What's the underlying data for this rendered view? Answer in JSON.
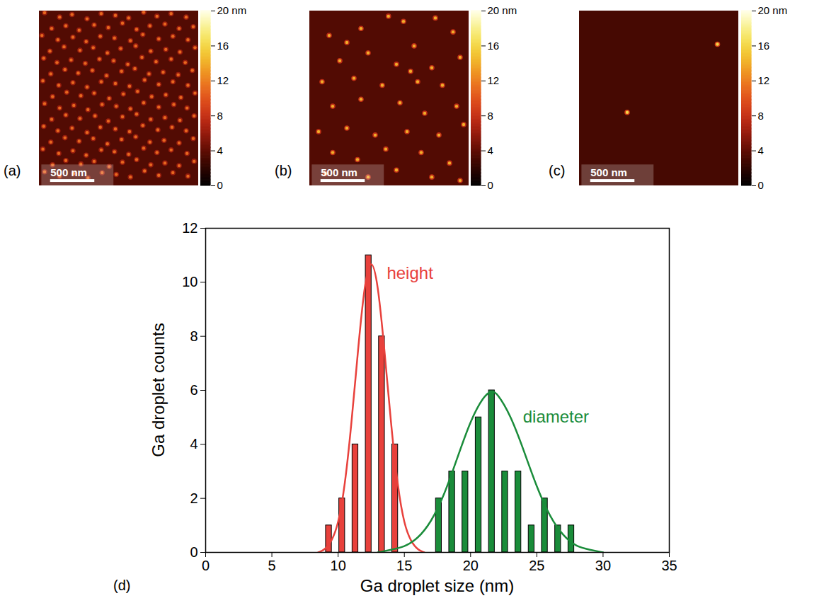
{
  "chart_data": [
    {
      "type": "image",
      "label": "(a)",
      "xlim": [
        0,
        1800
      ],
      "ylim": [
        0,
        2000
      ],
      "tick_labels": false,
      "background_height": 3.5,
      "droplet_height": 11,
      "scale_bar": {
        "length": 500,
        "label": "500 nm"
      },
      "colorbar": {
        "range": [
          0,
          20
        ],
        "ticks": [
          0,
          4,
          8,
          12,
          16,
          {
            "value": 20,
            "label": "20 nm"
          }
        ],
        "colors": [
          "#000000",
          "#5a0a00",
          "#d42a1a",
          "#f07a20",
          "#f2e22a",
          "#ffffe8"
        ]
      },
      "droplets": [
        [
          60,
          1980
        ],
        [
          230,
          1930
        ],
        [
          370,
          1960
        ],
        [
          540,
          1910
        ],
        [
          700,
          1970
        ],
        [
          860,
          1950
        ],
        [
          1010,
          1920
        ],
        [
          1180,
          1985
        ],
        [
          1330,
          1940
        ],
        [
          1490,
          1970
        ],
        [
          1660,
          1930
        ],
        [
          140,
          1800
        ],
        [
          300,
          1830
        ],
        [
          450,
          1780
        ],
        [
          620,
          1840
        ],
        [
          780,
          1810
        ],
        [
          940,
          1860
        ],
        [
          1100,
          1790
        ],
        [
          1250,
          1830
        ],
        [
          1420,
          1850
        ],
        [
          1580,
          1800
        ],
        [
          1740,
          1820
        ],
        [
          30,
          1720
        ],
        [
          210,
          1670
        ],
        [
          380,
          1700
        ],
        [
          530,
          1650
        ],
        [
          690,
          1710
        ],
        [
          850,
          1690
        ],
        [
          1030,
          1660
        ],
        [
          1170,
          1730
        ],
        [
          1350,
          1680
        ],
        [
          1510,
          1710
        ],
        [
          1680,
          1670
        ],
        [
          120,
          1540
        ],
        [
          280,
          1590
        ],
        [
          460,
          1550
        ],
        [
          610,
          1580
        ],
        [
          770,
          1520
        ],
        [
          920,
          1570
        ],
        [
          1090,
          1600
        ],
        [
          1260,
          1540
        ],
        [
          1430,
          1560
        ],
        [
          1590,
          1530
        ],
        [
          1760,
          1580
        ],
        [
          50,
          1460
        ],
        [
          200,
          1410
        ],
        [
          360,
          1440
        ],
        [
          520,
          1400
        ],
        [
          680,
          1450
        ],
        [
          840,
          1430
        ],
        [
          1000,
          1390
        ],
        [
          1160,
          1470
        ],
        [
          1320,
          1420
        ],
        [
          1490,
          1450
        ],
        [
          1650,
          1410
        ],
        [
          130,
          1280
        ],
        [
          290,
          1330
        ],
        [
          440,
          1290
        ],
        [
          600,
          1320
        ],
        [
          760,
          1260
        ],
        [
          930,
          1310
        ],
        [
          1080,
          1340
        ],
        [
          1240,
          1280
        ],
        [
          1400,
          1300
        ],
        [
          1570,
          1270
        ],
        [
          1730,
          1320
        ],
        [
          40,
          1200
        ],
        [
          220,
          1150
        ],
        [
          380,
          1180
        ],
        [
          540,
          1130
        ],
        [
          700,
          1190
        ],
        [
          860,
          1170
        ],
        [
          1020,
          1140
        ],
        [
          1190,
          1210
        ],
        [
          1350,
          1160
        ],
        [
          1510,
          1190
        ],
        [
          1680,
          1150
        ],
        [
          150,
          1020
        ],
        [
          310,
          1070
        ],
        [
          470,
          1030
        ],
        [
          620,
          1060
        ],
        [
          790,
          1000
        ],
        [
          950,
          1050
        ],
        [
          1110,
          1080
        ],
        [
          1270,
          1020
        ],
        [
          1430,
          1040
        ],
        [
          1600,
          1010
        ],
        [
          1760,
          1060
        ],
        [
          60,
          940
        ],
        [
          230,
          890
        ],
        [
          390,
          920
        ],
        [
          550,
          870
        ],
        [
          710,
          930
        ],
        [
          870,
          910
        ],
        [
          1030,
          880
        ],
        [
          1180,
          950
        ],
        [
          1350,
          900
        ],
        [
          1520,
          930
        ],
        [
          1670,
          890
        ],
        [
          140,
          760
        ],
        [
          300,
          810
        ],
        [
          460,
          770
        ],
        [
          630,
          800
        ],
        [
          780,
          740
        ],
        [
          940,
          790
        ],
        [
          1100,
          820
        ],
        [
          1260,
          760
        ],
        [
          1420,
          780
        ],
        [
          1590,
          750
        ],
        [
          1750,
          800
        ],
        [
          50,
          680
        ],
        [
          210,
          630
        ],
        [
          370,
          660
        ],
        [
          540,
          610
        ],
        [
          690,
          670
        ],
        [
          860,
          650
        ],
        [
          1020,
          620
        ],
        [
          1170,
          690
        ],
        [
          1340,
          640
        ],
        [
          1500,
          670
        ],
        [
          1660,
          630
        ],
        [
          130,
          500
        ],
        [
          290,
          550
        ],
        [
          450,
          510
        ],
        [
          610,
          540
        ],
        [
          770,
          480
        ],
        [
          930,
          530
        ],
        [
          1090,
          560
        ],
        [
          1250,
          500
        ],
        [
          1410,
          520
        ],
        [
          1580,
          490
        ],
        [
          1740,
          540
        ],
        [
          40,
          420
        ],
        [
          220,
          370
        ],
        [
          380,
          400
        ],
        [
          530,
          350
        ],
        [
          700,
          410
        ],
        [
          850,
          390
        ],
        [
          1010,
          360
        ],
        [
          1180,
          430
        ],
        [
          1330,
          380
        ],
        [
          1490,
          410
        ],
        [
          1670,
          370
        ],
        [
          150,
          240
        ],
        [
          300,
          290
        ],
        [
          470,
          250
        ],
        [
          620,
          280
        ],
        [
          790,
          220
        ],
        [
          940,
          270
        ],
        [
          1100,
          300
        ],
        [
          1260,
          240
        ],
        [
          1420,
          260
        ],
        [
          1580,
          230
        ],
        [
          1750,
          280
        ],
        [
          60,
          160
        ],
        [
          230,
          110
        ],
        [
          390,
          140
        ],
        [
          550,
          90
        ],
        [
          710,
          150
        ],
        [
          870,
          130
        ],
        [
          1030,
          100
        ],
        [
          1190,
          170
        ],
        [
          1350,
          120
        ],
        [
          1510,
          150
        ],
        [
          1680,
          110
        ]
      ]
    },
    {
      "type": "image",
      "label": "(b)",
      "xlim": [
        0,
        1800
      ],
      "ylim": [
        0,
        2000
      ],
      "tick_labels": false,
      "background_height": 3.5,
      "droplet_height": 14,
      "scale_bar": {
        "length": 500,
        "label": "500 nm"
      },
      "colorbar": {
        "range": [
          0,
          20
        ],
        "ticks": [
          0,
          4,
          8,
          12,
          16,
          {
            "value": 20,
            "label": "20 nm"
          }
        ],
        "colors": [
          "#000000",
          "#5a0a00",
          "#d42a1a",
          "#f07a20",
          "#f2e22a",
          "#ffffe8"
        ]
      },
      "droplets": [
        [
          220,
          1720
        ],
        [
          580,
          1800
        ],
        [
          890,
          1940
        ],
        [
          1060,
          1880
        ],
        [
          1420,
          1920
        ],
        [
          1620,
          1760
        ],
        [
          340,
          1430
        ],
        [
          660,
          1520
        ],
        [
          1180,
          1600
        ],
        [
          980,
          1390
        ],
        [
          1380,
          1350
        ],
        [
          1700,
          1470
        ],
        [
          140,
          1190
        ],
        [
          500,
          1230
        ],
        [
          820,
          1150
        ],
        [
          1220,
          1190
        ],
        [
          1500,
          1150
        ],
        [
          260,
          910
        ],
        [
          580,
          990
        ],
        [
          1020,
          950
        ],
        [
          1300,
          830
        ],
        [
          1660,
          910
        ],
        [
          100,
          620
        ],
        [
          420,
          660
        ],
        [
          740,
          580
        ],
        [
          1100,
          620
        ],
        [
          1460,
          580
        ],
        [
          1740,
          700
        ],
        [
          260,
          380
        ],
        [
          540,
          300
        ],
        [
          860,
          420
        ],
        [
          1260,
          380
        ],
        [
          1580,
          260
        ],
        [
          180,
          140
        ],
        [
          660,
          100
        ],
        [
          980,
          180
        ],
        [
          1380,
          100
        ],
        [
          1700,
          60
        ],
        [
          1140,
          1310
        ],
        [
          420,
          1640
        ]
      ]
    },
    {
      "type": "image",
      "label": "(c)",
      "xlim": [
        0,
        1800
      ],
      "ylim": [
        0,
        2000
      ],
      "tick_labels": false,
      "background_height": 3,
      "droplet_height": 16,
      "scale_bar": {
        "length": 500,
        "label": "500 nm"
      },
      "colorbar": {
        "range": [
          0,
          20
        ],
        "ticks": [
          0,
          4,
          8,
          12,
          16,
          {
            "value": 20,
            "label": "20 nm"
          }
        ],
        "colors": [
          "#000000",
          "#5a0a00",
          "#d42a1a",
          "#f07a20",
          "#f2e22a",
          "#ffffe8"
        ]
      },
      "droplets": [
        [
          1560,
          1620
        ],
        [
          540,
          840
        ]
      ]
    },
    {
      "type": "bar",
      "label": "(d)",
      "xlabel": "Ga droplet size (nm)",
      "ylabel": "Ga droplet counts",
      "xlim": [
        0,
        35
      ],
      "xticks": [
        0,
        5,
        10,
        15,
        20,
        25,
        30,
        35
      ],
      "ylim": [
        0,
        12
      ],
      "yticks": [
        0,
        2,
        4,
        6,
        8,
        10,
        12
      ],
      "series": [
        {
          "name": "height",
          "color": "#e8413c",
          "x": [
            9.3,
            10.3,
            11.3,
            12.3,
            13.3,
            14.3
          ],
          "values": [
            1,
            2,
            4,
            11,
            8,
            4
          ],
          "fit": {
            "x": [
              8.5,
              9,
              9.5,
              10,
              10.5,
              11,
              11.5,
              12,
              12.5,
              13,
              13.5,
              14,
              14.5,
              15,
              15.5,
              16,
              16.5
            ],
            "values": [
              0,
              0.1,
              0.4,
              1,
              2.4,
              4.7,
              7.5,
              10,
              11,
              10,
              7.5,
              4.7,
              2.4,
              1,
              0.4,
              0.1,
              0
            ]
          }
        },
        {
          "name": "diameter",
          "color": "#1a8c3a",
          "x": [
            17.6,
            18.6,
            19.6,
            20.6,
            21.6,
            22.6,
            23.6,
            24.6,
            25.6,
            26.6,
            27.6
          ],
          "values": [
            2,
            3,
            3,
            5,
            6,
            3,
            3,
            1,
            2,
            1,
            1
          ],
          "fit": {
            "x": [
              13,
              14,
              15,
              16,
              17,
              18,
              19,
              20,
              21,
              21.6,
              22,
              23,
              24,
              25,
              26,
              27,
              28,
              29,
              30
            ],
            "values": [
              0,
              0.1,
              0.2,
              0.5,
              1.1,
              2.1,
              3.5,
              4.9,
              5.8,
              6,
              5.9,
              5.1,
              3.8,
              2.4,
              1.3,
              0.6,
              0.2,
              0.1,
              0
            ]
          }
        }
      ]
    }
  ]
}
